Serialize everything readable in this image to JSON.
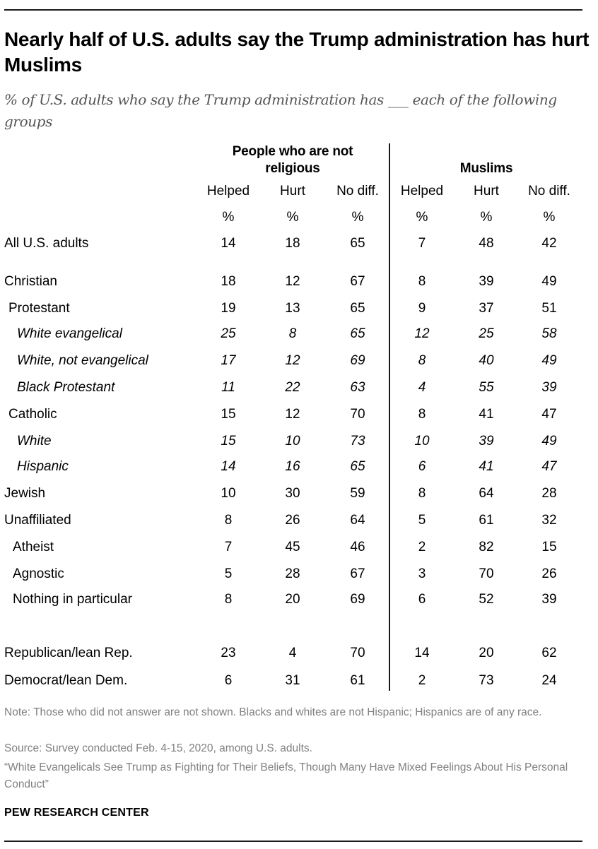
{
  "title": "Nearly half of U.S. adults say the Trump administration has hurt Muslims",
  "subtitle": "% of U.S. adults who say the Trump administration has ___ each of the following groups",
  "chart_data": {
    "type": "table",
    "groups": [
      {
        "name": "People who are not religious",
        "columns": [
          "Helped",
          "Hurt",
          "No diff."
        ]
      },
      {
        "name": "Muslims",
        "columns": [
          "Helped",
          "Hurt",
          "No diff."
        ]
      }
    ],
    "unit_label": "%",
    "rows": [
      {
        "label": "All U.S. adults",
        "italic": false,
        "values": [
          14,
          18,
          65,
          7,
          48,
          42
        ]
      },
      {
        "label": "Christian",
        "italic": false,
        "values": [
          18,
          12,
          67,
          8,
          39,
          49
        ]
      },
      {
        "label": "Protestant",
        "italic": false,
        "values": [
          19,
          13,
          65,
          9,
          37,
          51
        ]
      },
      {
        "label": "White evangelical",
        "italic": true,
        "values": [
          25,
          8,
          65,
          12,
          25,
          58
        ]
      },
      {
        "label": "White, not evangelical",
        "italic": true,
        "values": [
          17,
          12,
          69,
          8,
          40,
          49
        ]
      },
      {
        "label": "Black Protestant",
        "italic": true,
        "values": [
          11,
          22,
          63,
          4,
          55,
          39
        ]
      },
      {
        "label": "Catholic",
        "italic": false,
        "values": [
          15,
          12,
          70,
          8,
          41,
          47
        ]
      },
      {
        "label": "White",
        "italic": true,
        "values": [
          15,
          10,
          73,
          10,
          39,
          49
        ]
      },
      {
        "label": "Hispanic",
        "italic": true,
        "values": [
          14,
          16,
          65,
          6,
          41,
          47
        ]
      },
      {
        "label": "Jewish",
        "italic": false,
        "values": [
          10,
          30,
          59,
          8,
          64,
          28
        ]
      },
      {
        "label": "Unaffiliated",
        "italic": false,
        "values": [
          8,
          26,
          64,
          5,
          61,
          32
        ]
      },
      {
        "label": "Atheist",
        "italic": false,
        "values": [
          7,
          45,
          46,
          2,
          82,
          15
        ]
      },
      {
        "label": "Agnostic",
        "italic": false,
        "values": [
          5,
          28,
          67,
          3,
          70,
          26
        ]
      },
      {
        "label": "Nothing in particular",
        "italic": false,
        "values": [
          8,
          20,
          69,
          6,
          52,
          39
        ]
      },
      {
        "label": "Republican/lean Rep.",
        "italic": false,
        "values": [
          23,
          4,
          70,
          14,
          20,
          62
        ]
      },
      {
        "label": "Democrat/lean Dem.",
        "italic": false,
        "values": [
          6,
          31,
          61,
          2,
          73,
          24
        ]
      }
    ]
  },
  "footer": {
    "note": "Note: Those who did not answer are not shown. Blacks and whites are not Hispanic; Hispanics are of any race.",
    "source": "Source: Survey conducted Feb. 4-15, 2020, among U.S. adults.",
    "report": "“White Evangelicals See Trump as Fighting for Their Beliefs, Though Many Have Mixed Feelings About His Personal Conduct”",
    "logo": "PEW RESEARCH CENTER"
  }
}
